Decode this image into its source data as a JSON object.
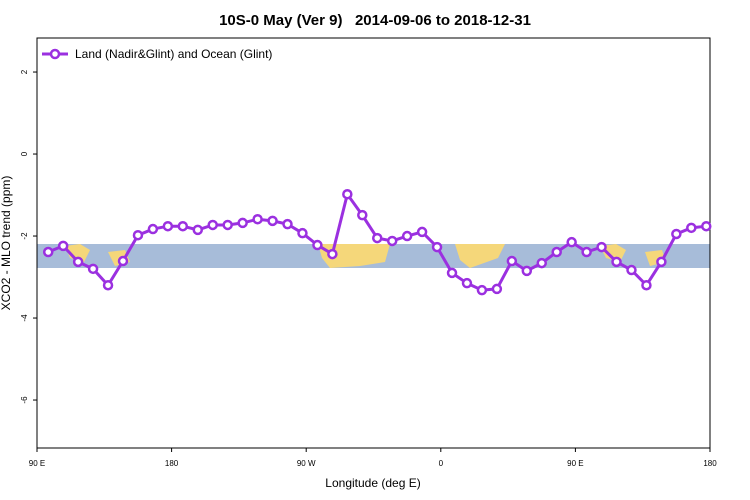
{
  "chart_data": {
    "type": "line",
    "title": "10S-0 May (Ver 9)   2014-09-06 to 2018-12-31",
    "x_label": "Longitude (deg E)",
    "y_label": "XCO2 - MLO trend (ppm)",
    "xlim": [
      90,
      540
    ],
    "ylim": [
      -7.17,
      2.83
    ],
    "xticks": [
      {
        "value": 90,
        "label": "90 E"
      },
      180,
      {
        "value": 270,
        "label": "90 W"
      },
      {
        "value": 360,
        "label": "0"
      },
      {
        "value": 450,
        "label": "90 E"
      },
      {
        "value": 540,
        "label": "180"
      }
    ],
    "yticks": [
      2,
      0,
      -2,
      -4,
      -6
    ],
    "legend": "top-left",
    "x": [
      97.5,
      107.5,
      117.5,
      127.5,
      137.5,
      147.5,
      157.5,
      167.5,
      177.5,
      187.5,
      197.5,
      207.5,
      217.5,
      227.5,
      237.5,
      247.5,
      257.5,
      267.5,
      277.5,
      287.5,
      297.5,
      307.5,
      317.5,
      327.5,
      337.5,
      347.5,
      357.5,
      367.5,
      377.5,
      387.5,
      397.5,
      407.5,
      417.5,
      427.5,
      437.5,
      447.5,
      457.5,
      467.5,
      477.5,
      487.5,
      497.5,
      507.5,
      517.5,
      527.5,
      537.5
    ],
    "series": [
      {
        "name": "Land (Nadir&Glint) and Ocean (Glint)",
        "color": "#9b30e0",
        "values": [
          -2.39,
          -2.24,
          -2.63,
          -2.8,
          -3.2,
          -2.61,
          -1.98,
          -1.83,
          -1.76,
          -1.76,
          -1.85,
          -1.73,
          -1.73,
          -1.68,
          -1.59,
          -1.63,
          -1.71,
          -1.93,
          -2.22,
          -2.44,
          -0.98,
          -1.49,
          -2.05,
          -2.12,
          -2.0,
          -1.9,
          -2.27,
          -2.9,
          -3.15,
          -3.32,
          -3.29,
          -2.61,
          -2.85,
          -2.66,
          -2.39,
          -2.15,
          -2.39,
          -2.27,
          -2.63,
          -2.83,
          -3.2,
          -2.63,
          -1.95,
          -1.8,
          -1.76
        ]
      }
    ]
  }
}
